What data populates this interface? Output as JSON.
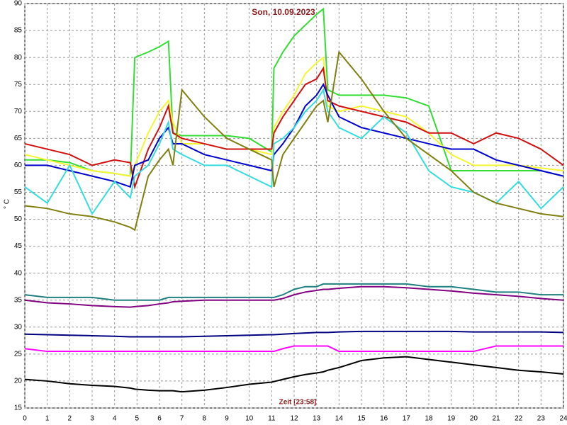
{
  "chart_data": {
    "type": "line",
    "title": "Son, 10.09.2023",
    "x_label": "Zeit [23:58]",
    "y_label": "° C",
    "x": [
      0,
      1,
      2,
      3,
      4,
      4.7,
      4.9,
      5.5,
      6,
      6.4,
      6.6,
      7,
      8,
      9,
      10,
      11,
      11.1,
      11.5,
      12,
      12.5,
      13,
      13.3,
      13.5,
      14,
      15,
      16,
      17,
      18,
      19,
      20,
      21,
      22,
      23,
      24
    ],
    "xlim": [
      0,
      24
    ],
    "xticks": [
      0,
      1,
      2,
      3,
      4,
      5,
      6,
      7,
      8,
      9,
      10,
      11,
      12,
      13,
      14,
      15,
      16,
      17,
      18,
      19,
      20,
      21,
      22,
      23,
      24
    ],
    "ylim": [
      15,
      90
    ],
    "yticks": [
      15,
      20,
      25,
      30,
      35,
      40,
      45,
      50,
      55,
      60,
      65,
      70,
      75,
      80,
      85,
      90
    ],
    "grid": true,
    "series": [
      {
        "color": "#33dd33",
        "values": [
          61,
          61,
          60.5,
          59,
          58.5,
          58,
          80,
          81,
          82,
          83,
          66,
          65.5,
          65.5,
          65.5,
          65,
          62.5,
          78,
          81,
          84,
          86,
          88,
          89,
          74,
          73,
          73,
          73,
          72.5,
          71,
          59,
          59,
          59,
          59,
          59,
          58
        ]
      },
      {
        "color": "#f5f532",
        "values": [
          62,
          61,
          60,
          59,
          58.5,
          58,
          60,
          66,
          70,
          72,
          68,
          64,
          64,
          63,
          63,
          62,
          67,
          70,
          73,
          77,
          79,
          80,
          71,
          70,
          71,
          70,
          69,
          66,
          62,
          60,
          60,
          60,
          59.5,
          59
        ]
      },
      {
        "color": "#d01010",
        "values": [
          64,
          63,
          62,
          60,
          61,
          60.5,
          56,
          63,
          67,
          71,
          66,
          65,
          64,
          63,
          63,
          63,
          66,
          69,
          72,
          75,
          76,
          78,
          72,
          71,
          70,
          69,
          68,
          66,
          66,
          64,
          66,
          65,
          63,
          60
        ]
      },
      {
        "color": "#0000cc",
        "values": [
          60,
          60,
          59,
          58,
          57,
          56,
          60,
          61,
          65,
          67,
          64,
          64,
          62,
          61,
          60,
          59,
          62,
          64,
          67,
          71,
          73,
          75,
          73,
          69,
          67,
          66,
          65,
          64,
          63,
          63,
          61,
          60,
          59,
          58
        ]
      },
      {
        "color": "#33dddd",
        "values": [
          56,
          53,
          60,
          51,
          57,
          54,
          58,
          60,
          64,
          68,
          63,
          62,
          60,
          60,
          58,
          56,
          64,
          65,
          67,
          70,
          72,
          74,
          70,
          67,
          65,
          69,
          66,
          59,
          56,
          55,
          53,
          57,
          52,
          56
        ]
      },
      {
        "color": "#808010",
        "values": [
          52.5,
          52,
          51,
          50.5,
          49.5,
          48.5,
          48,
          58,
          61,
          63,
          60,
          74,
          69,
          65,
          63,
          61,
          56,
          62,
          65,
          68,
          71,
          72,
          68,
          81,
          76,
          70,
          65,
          62,
          59,
          55,
          53,
          52,
          51,
          50.5
        ]
      },
      {
        "color": "#208080",
        "values": [
          36,
          35.5,
          35.5,
          35.5,
          35,
          35,
          35,
          35,
          35,
          35.5,
          35.5,
          35.5,
          35.5,
          35.5,
          35.5,
          35.5,
          35.5,
          36,
          37,
          37.5,
          37.5,
          38,
          38,
          38,
          38,
          38,
          38,
          37.5,
          37.5,
          37,
          36.5,
          36.5,
          36,
          36
        ]
      },
      {
        "color": "#800080",
        "values": [
          35,
          34.5,
          34.3,
          34,
          33.8,
          33.7,
          33.8,
          34,
          34.3,
          34.5,
          34.7,
          34.8,
          35,
          35,
          35,
          35,
          35,
          35.3,
          36,
          36.5,
          36.8,
          37,
          37,
          37.2,
          37.5,
          37.5,
          37.3,
          37,
          36.7,
          36.3,
          36,
          35.7,
          35.3,
          35
        ]
      },
      {
        "color": "#000080",
        "values": [
          28.7,
          28.6,
          28.5,
          28.4,
          28.3,
          28.2,
          28.2,
          28.2,
          28.2,
          28.2,
          28.2,
          28.2,
          28.3,
          28.4,
          28.5,
          28.6,
          28.6,
          28.7,
          28.8,
          28.9,
          29,
          29,
          29,
          29.1,
          29.2,
          29.2,
          29.2,
          29.2,
          29.2,
          29.1,
          29.1,
          29.1,
          29.1,
          29
        ]
      },
      {
        "color": "#ff00ff",
        "values": [
          26,
          25.5,
          25.5,
          25.5,
          25.5,
          25.5,
          25.5,
          25.5,
          25.5,
          25.5,
          25.5,
          25.5,
          25.5,
          25.5,
          25.5,
          25.5,
          25.5,
          26,
          26.5,
          26.5,
          26.5,
          26.5,
          26.5,
          25.5,
          25.5,
          25.5,
          25.5,
          25.5,
          25.5,
          25.5,
          26.5,
          26.5,
          26.5,
          26.5
        ]
      },
      {
        "color": "#000000",
        "values": [
          20.3,
          20,
          19.5,
          19.2,
          19,
          18.7,
          18.5,
          18.3,
          18.2,
          18.2,
          18.2,
          18,
          18.3,
          18.8,
          19.4,
          19.8,
          19.9,
          20.3,
          20.8,
          21.2,
          21.5,
          21.7,
          22,
          22.5,
          23.8,
          24.3,
          24.5,
          24,
          23.5,
          23,
          22.5,
          22,
          21.7,
          21.3
        ]
      }
    ]
  }
}
